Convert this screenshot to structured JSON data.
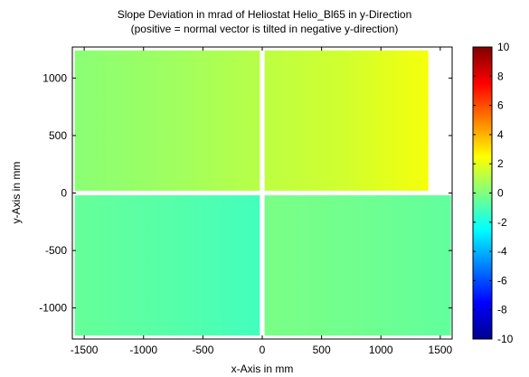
{
  "chart_data": {
    "type": "heatmap",
    "title": "Slope Deviation in mrad of Heliostat Helio_Bl65 in y-Direction",
    "subtitle": "(positive = normal vector is tilted in negative y-direction)",
    "xlabel": "x-Axis in mm",
    "ylabel": "y-Axis in mm",
    "xlim": [
      -1600,
      1600
    ],
    "ylim": [
      -1270,
      1270
    ],
    "x_ticks": [
      -1500,
      -1000,
      -500,
      0,
      500,
      1000,
      1500
    ],
    "y_ticks": [
      -1000,
      -500,
      0,
      500,
      1000
    ],
    "x_tick_labels": [
      "-1500",
      "-1000",
      "-500",
      "0",
      "500",
      "1000",
      "1500"
    ],
    "y_tick_labels": [
      "-1000",
      "-500",
      "0",
      "500",
      "1000"
    ],
    "colorbar": {
      "min": -10,
      "max": 10,
      "ticks": [
        -10,
        -8,
        -6,
        -4,
        -2,
        0,
        2,
        4,
        6,
        8,
        10
      ],
      "tick_labels": [
        "-10",
        "-8",
        "-6",
        "-4",
        "-2",
        "0",
        "2",
        "4",
        "6",
        "8",
        "10"
      ],
      "colormap": "jet"
    },
    "facets": [
      {
        "name": "upper-left",
        "x": [
          -1580,
          -20
        ],
        "y": [
          20,
          1240
        ],
        "mean_mrad": 0.6,
        "left_mrad": 0.2,
        "right_mrad": 1.1
      },
      {
        "name": "upper-right",
        "x": [
          20,
          1400
        ],
        "y": [
          20,
          1240
        ],
        "mean_mrad": 1.6,
        "left_mrad": 1.2,
        "right_mrad": 2.3
      },
      {
        "name": "lower-left",
        "x": [
          -1580,
          -20
        ],
        "y": [
          -1240,
          -20
        ],
        "mean_mrad": -0.8,
        "left_mrad": -0.5,
        "right_mrad": -1.2
      },
      {
        "name": "lower-right",
        "x": [
          20,
          1590
        ],
        "y": [
          -1240,
          -20
        ],
        "mean_mrad": -0.3,
        "left_mrad": -0.1,
        "right_mrad": -0.6
      }
    ]
  }
}
